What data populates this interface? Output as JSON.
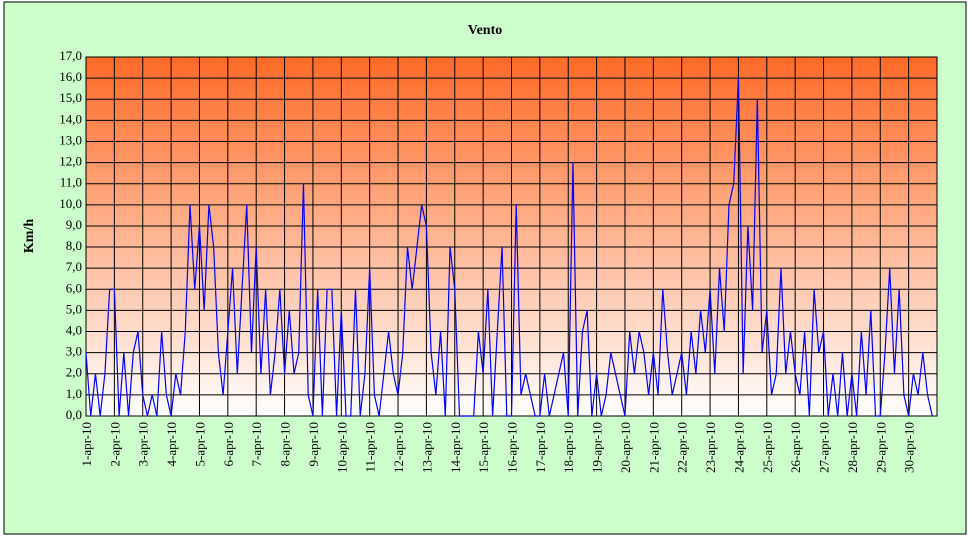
{
  "chart_data": {
    "type": "line",
    "title": "Vento",
    "y_label": "Km/h",
    "categories": [
      "1-apr-10",
      null,
      null,
      null,
      null,
      null,
      "2-apr-10",
      null,
      null,
      null,
      null,
      null,
      "3-apr-10",
      null,
      null,
      null,
      null,
      null,
      "4-apr-10",
      null,
      null,
      null,
      null,
      null,
      "5-apr-10",
      null,
      null,
      null,
      null,
      null,
      "6-apr-10",
      null,
      null,
      null,
      null,
      null,
      "7-apr-10",
      null,
      null,
      null,
      null,
      null,
      "8-apr-10",
      null,
      null,
      null,
      null,
      null,
      "9-apr-10",
      null,
      null,
      null,
      null,
      null,
      "10-apr-10",
      null,
      null,
      null,
      null,
      null,
      "11-apr-10",
      null,
      null,
      null,
      null,
      null,
      "12-apr-10",
      null,
      null,
      null,
      null,
      null,
      "13-apr-10",
      null,
      null,
      null,
      null,
      null,
      "14-apr-10",
      null,
      null,
      null,
      null,
      null,
      "15-apr-10",
      null,
      null,
      null,
      null,
      null,
      "16-apr-10",
      null,
      null,
      null,
      null,
      null,
      "17-apr-10",
      null,
      null,
      null,
      null,
      null,
      "18-apr-10",
      null,
      null,
      null,
      null,
      null,
      "19-apr-10",
      null,
      null,
      null,
      null,
      null,
      "20-apr-10",
      null,
      null,
      null,
      null,
      null,
      "21-apr-10",
      null,
      null,
      null,
      null,
      null,
      "22-apr-10",
      null,
      null,
      null,
      null,
      null,
      "23-apr-10",
      null,
      null,
      null,
      null,
      null,
      "24-apr-10",
      null,
      null,
      null,
      null,
      null,
      "25-apr-10",
      null,
      null,
      null,
      null,
      null,
      "26-apr-10",
      null,
      null,
      null,
      null,
      null,
      "27-apr-10",
      null,
      null,
      null,
      null,
      null,
      "28-apr-10",
      null,
      null,
      null,
      null,
      null,
      "29-apr-10",
      null,
      null,
      null,
      null,
      null,
      "30-apr-10",
      null,
      null,
      null,
      null,
      null
    ],
    "series": [
      {
        "name": "Vento",
        "color": "#0000ff",
        "values": [
          3,
          0,
          2,
          0,
          2,
          6,
          6,
          0,
          3,
          0,
          3,
          4,
          1,
          0,
          1,
          0,
          4,
          1,
          0,
          2,
          1,
          4,
          10,
          6,
          9,
          5,
          10,
          8,
          3,
          1,
          4,
          7,
          2,
          6,
          10,
          3,
          8,
          2,
          6,
          1,
          3,
          6,
          2,
          5,
          2,
          3,
          11,
          1,
          0,
          6,
          0,
          6,
          6,
          0,
          5,
          0,
          0,
          6,
          0,
          2,
          7,
          1,
          0,
          2,
          4,
          2,
          1,
          3,
          8,
          6,
          8,
          10,
          9,
          3,
          1,
          4,
          0,
          8,
          6,
          0,
          0,
          0,
          0,
          4,
          2,
          6,
          0,
          4,
          8,
          0,
          0,
          10,
          1,
          2,
          1,
          0,
          0,
          2,
          0,
          1,
          2,
          3,
          0,
          12,
          0,
          4,
          5,
          0,
          2,
          0,
          1,
          3,
          2,
          1,
          0,
          4,
          2,
          4,
          3,
          1,
          3,
          1,
          6,
          3,
          1,
          2,
          3,
          1,
          4,
          2,
          5,
          3,
          6,
          2,
          7,
          4,
          10,
          11,
          16,
          2,
          9,
          5,
          15,
          3,
          5,
          1,
          2,
          7,
          2,
          4,
          2,
          1,
          4,
          0,
          6,
          3,
          4,
          0,
          2,
          0,
          3,
          0,
          2,
          0,
          4,
          1,
          5,
          0,
          0,
          3,
          7,
          2,
          6,
          1,
          0,
          2,
          1,
          3,
          1,
          0
        ]
      }
    ],
    "ylim": [
      0,
      17
    ],
    "yticks": [
      {
        "value": 0,
        "label": "0,0"
      },
      {
        "value": 1,
        "label": "1,0"
      },
      {
        "value": 2,
        "label": "2,0"
      },
      {
        "value": 3,
        "label": "3,0"
      },
      {
        "value": 4,
        "label": "4,0"
      },
      {
        "value": 5,
        "label": "5,0"
      },
      {
        "value": 6,
        "label": "6,0"
      },
      {
        "value": 7,
        "label": "7,0"
      },
      {
        "value": 8,
        "label": "8,0"
      },
      {
        "value": 9,
        "label": "9,0"
      },
      {
        "value": 10,
        "label": "10,0"
      },
      {
        "value": 11,
        "label": "11,0"
      },
      {
        "value": 12,
        "label": "12,0"
      },
      {
        "value": 13,
        "label": "13,0"
      },
      {
        "value": 14,
        "label": "14,0"
      },
      {
        "value": 15,
        "label": "15,0"
      },
      {
        "value": 16,
        "label": "16,0"
      },
      {
        "value": 17,
        "label": "17,0"
      }
    ],
    "grid": true
  }
}
